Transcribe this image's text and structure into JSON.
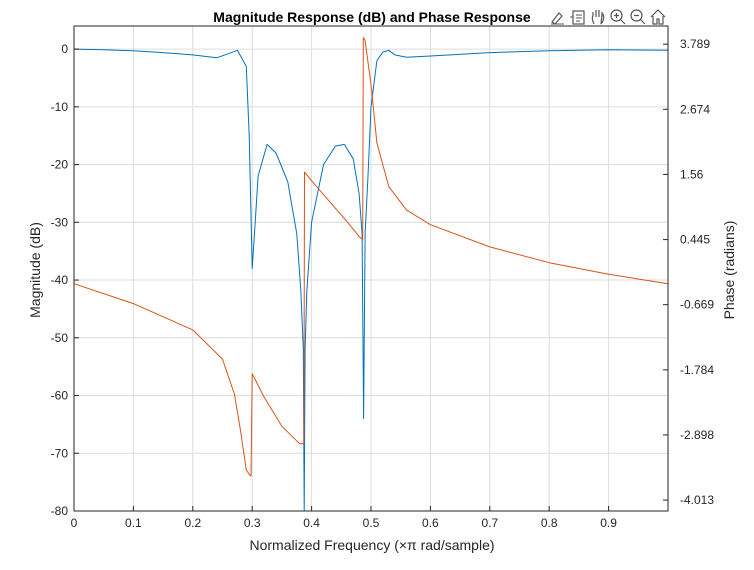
{
  "chart_data": {
    "type": "line",
    "title": "Magnitude Response (dB) and Phase Response",
    "xlabel": "Normalized  Frequency  (×π  rad/sample)",
    "ylabel_left": "Magnitude (dB)",
    "ylabel_right": "Phase (radians)",
    "xlim": [
      0,
      1
    ],
    "ylim_left": [
      -80,
      4
    ],
    "ylim_right": [
      -4.2,
      4.1
    ],
    "x_ticks": [
      "0",
      "0.1",
      "0.2",
      "0.3",
      "0.4",
      "0.5",
      "0.6",
      "0.7",
      "0.8",
      "0.9"
    ],
    "y_ticks_left": [
      "0",
      "-10",
      "-20",
      "-30",
      "-40",
      "-50",
      "-60",
      "-70",
      "-80"
    ],
    "y_ticks_right": [
      "3.789",
      "2.674",
      "1.56",
      "0.445",
      "-0.669",
      "-1.784",
      "-2.898",
      "-4.013"
    ],
    "grid": true,
    "colors": {
      "magnitude": "#0072BD",
      "phase": "#D95319"
    },
    "series": [
      {
        "axis": "left",
        "x": [
          0,
          0.05,
          0.1,
          0.15,
          0.2,
          0.24,
          0.26,
          0.275,
          0.29,
          0.295,
          0.3,
          0.305,
          0.31,
          0.325,
          0.34,
          0.36,
          0.375,
          0.382,
          0.386,
          0.3875,
          0.389,
          0.392,
          0.4,
          0.42,
          0.44,
          0.455,
          0.47,
          0.48,
          0.485,
          0.4875,
          0.49,
          0.495,
          0.5,
          0.51,
          0.52,
          0.53,
          0.54,
          0.56,
          0.6,
          0.7,
          0.8,
          0.9,
          1.0
        ],
        "values": [
          0,
          -0.1,
          -0.3,
          -0.6,
          -1.0,
          -1.5,
          -0.8,
          -0.2,
          -3,
          -15,
          -38,
          -30,
          -22,
          -16.5,
          -18,
          -23,
          -32,
          -42,
          -52,
          -80,
          -52,
          -42,
          -30,
          -20,
          -16.8,
          -16.5,
          -19,
          -25,
          -32,
          -64,
          -32,
          -22,
          -10,
          -2,
          -0.5,
          -0.2,
          -1.0,
          -1.4,
          -1.2,
          -0.6,
          -0.3,
          -0.1,
          -0.2
        ]
      },
      {
        "axis": "right",
        "x": [
          0,
          0.1,
          0.2,
          0.25,
          0.27,
          0.28,
          0.29,
          0.297,
          0.298,
          0.3,
          0.32,
          0.35,
          0.38,
          0.387,
          0.388,
          0.4,
          0.43,
          0.46,
          0.48,
          0.486,
          0.487,
          0.49,
          0.5,
          0.51,
          0.53,
          0.56,
          0.6,
          0.7,
          0.8,
          0.9,
          1.0
        ],
        "values": [
          -0.31,
          -0.65,
          -1.1,
          -1.6,
          -2.2,
          -2.8,
          -3.5,
          -3.6,
          -3.6,
          -1.85,
          -2.25,
          -2.75,
          -3.05,
          -3.05,
          1.6,
          1.45,
          1.1,
          0.75,
          0.5,
          0.44,
          3.9,
          3.85,
          3.1,
          2.1,
          1.35,
          0.95,
          0.7,
          0.32,
          0.05,
          -0.15,
          -0.31
        ]
      }
    ]
  },
  "toolbar": {
    "icons": [
      "brush-icon",
      "datatip-icon",
      "pan-hand-icon",
      "zoom-in-icon",
      "zoom-out-icon",
      "home-icon"
    ]
  }
}
